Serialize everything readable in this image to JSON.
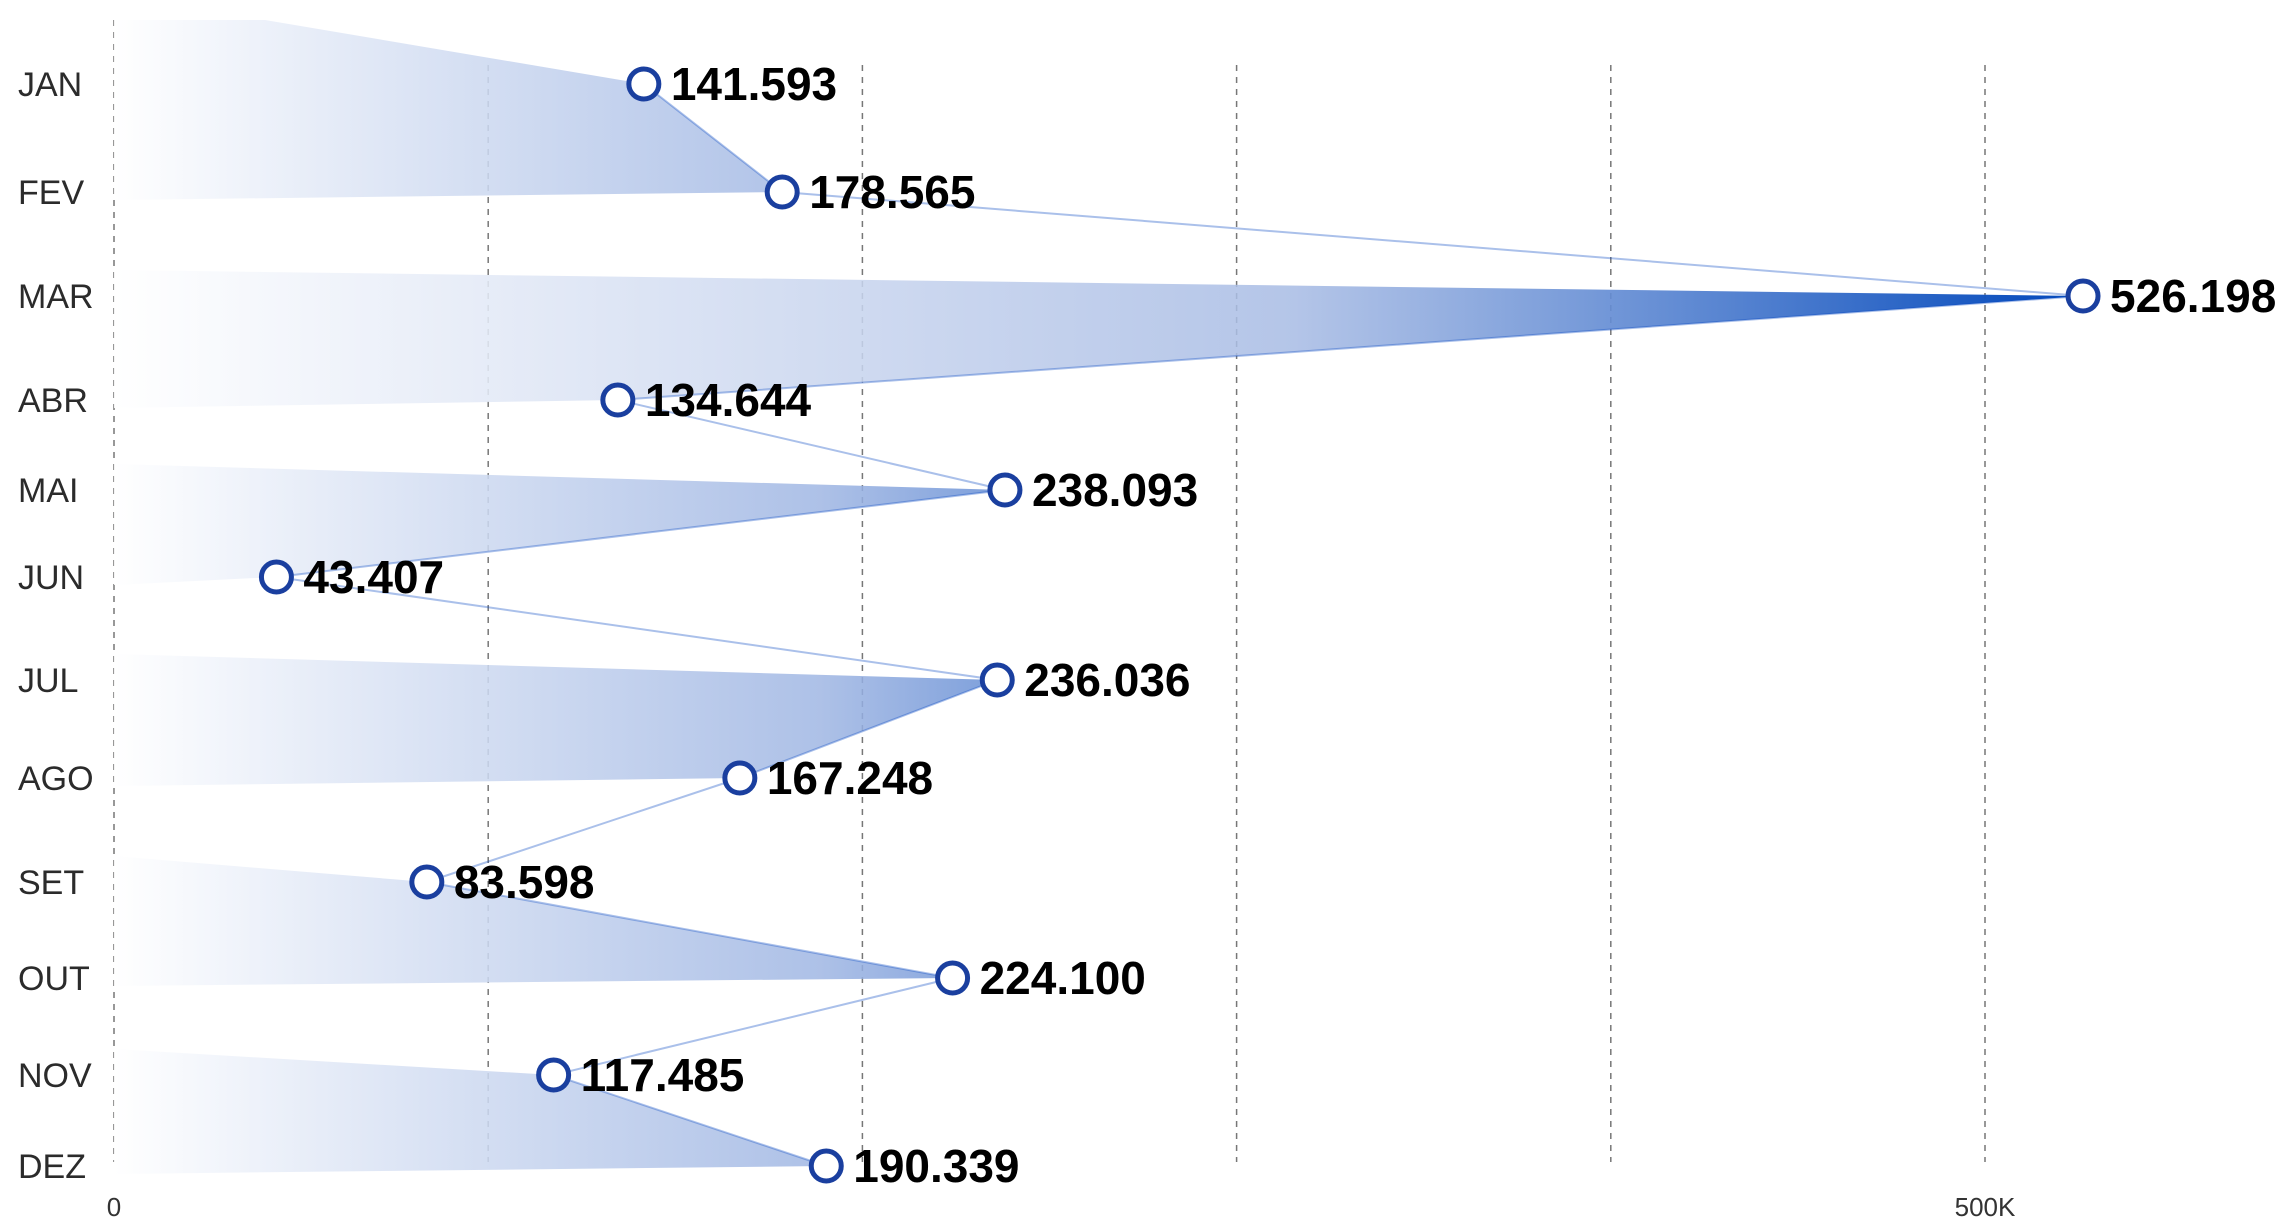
{
  "chart_data": {
    "type": "line",
    "orientation": "horizontal",
    "categories": [
      "JAN",
      "FEV",
      "MAR",
      "ABR",
      "MAI",
      "JUN",
      "JUL",
      "AGO",
      "SET",
      "OUT",
      "NOV",
      "DEZ"
    ],
    "values": [
      141593,
      178565,
      526198,
      134644,
      238093,
      43407,
      236036,
      167248,
      83598,
      224100,
      117485,
      190339
    ],
    "value_labels": [
      "141.593",
      "178.565",
      "526.198",
      "134.644",
      "238.093",
      "43.407",
      "236.036",
      "167.248",
      "83.598",
      "224.100",
      "117.485",
      "190.339"
    ],
    "x_ticks": [
      {
        "value": 0,
        "label": "0"
      },
      {
        "value": 500000,
        "label": "500K"
      }
    ],
    "x_gridlines": [
      100000,
      200000,
      300000,
      400000,
      500000
    ],
    "xlim": [
      -20000,
      555000
    ],
    "grid": true,
    "title": "",
    "xlabel": "",
    "ylabel": "",
    "colors": {
      "fill_start": "#ffffff",
      "fill_end": "#0047bb",
      "marker_stroke": "#1a3f9f",
      "line": "#0b4bc4"
    }
  }
}
